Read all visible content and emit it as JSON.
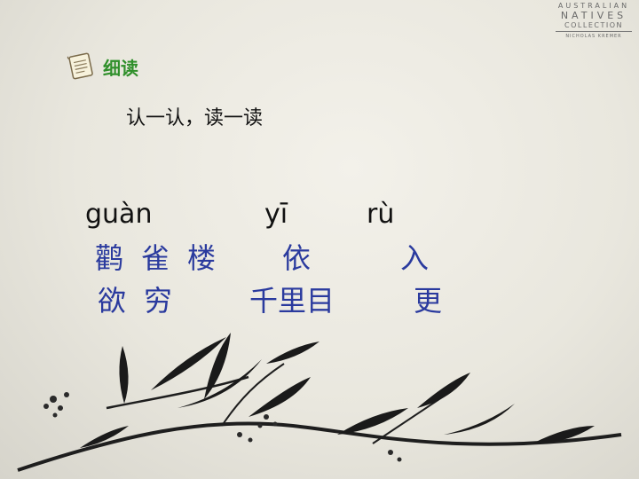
{
  "logo": {
    "line1": "AUSTRALIAN",
    "line2": "NATIVES",
    "line3": "COLLECTION",
    "line4": "NICHOLAS KREMER"
  },
  "section": {
    "icon": "notepad-icon",
    "title": "细读"
  },
  "instruction": "认一认，读一读",
  "pinyin": [
    "guàn",
    "yī",
    "rù"
  ],
  "row1": [
    "鹳",
    "雀",
    "楼",
    "依",
    "入"
  ],
  "row2": [
    "欲",
    "穷",
    "千里目",
    "更"
  ],
  "colors": {
    "title": "#2f8f2a",
    "characters": "#2a3a9e",
    "pinyin": "#111111"
  }
}
